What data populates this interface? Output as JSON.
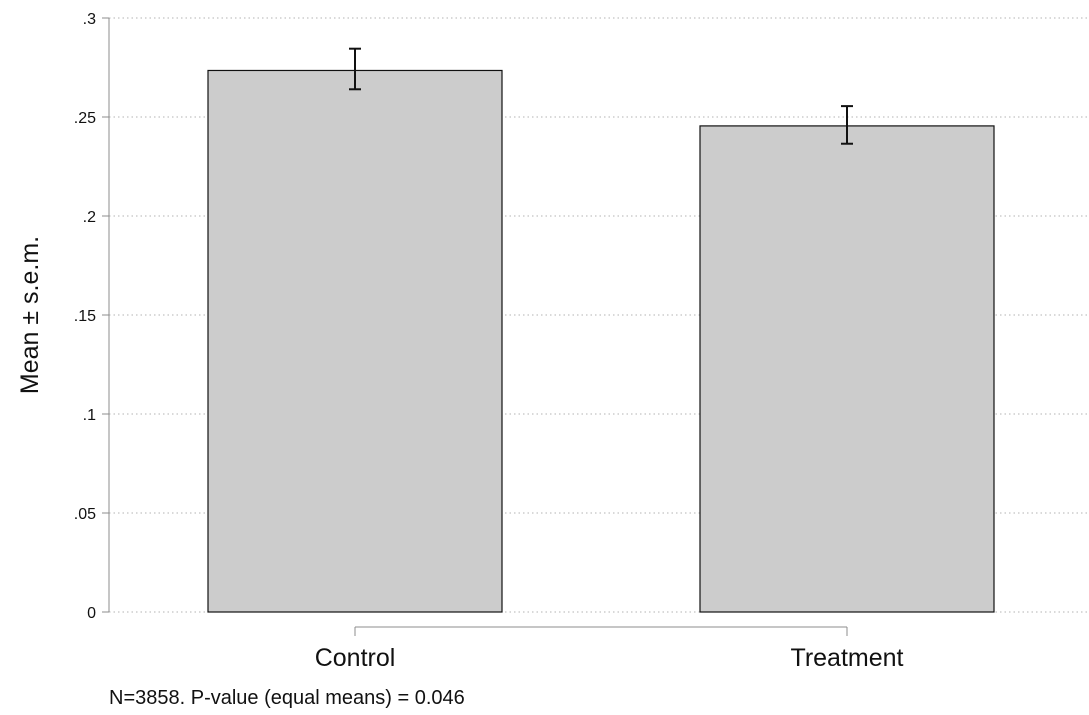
{
  "chart_data": {
    "type": "bar",
    "title": "",
    "xlabel": "",
    "ylabel": "Mean ± s.e.m.",
    "categories": [
      "Control",
      "Treatment"
    ],
    "values": [
      0.2735,
      0.2455
    ],
    "error_bars": [
      {
        "lower": 0.264,
        "upper": 0.2845
      },
      {
        "lower": 0.2365,
        "upper": 0.2555
      }
    ],
    "ylim": [
      0,
      0.3
    ],
    "yticks": [
      0,
      0.05,
      0.1,
      0.15,
      0.2,
      0.25,
      0.3
    ],
    "ytick_labels": [
      "0",
      ".05",
      ".1",
      ".15",
      ".2",
      ".25",
      ".3"
    ],
    "grid": true,
    "legend": "none",
    "note": "N=3858. P-value (equal means) = 0.046",
    "colors": {
      "bar_fill": "#cccccc",
      "bar_stroke": "#111111",
      "axis": "#8c8c8c",
      "grid": "#b3b3b3",
      "errorbar": "#111111"
    }
  }
}
